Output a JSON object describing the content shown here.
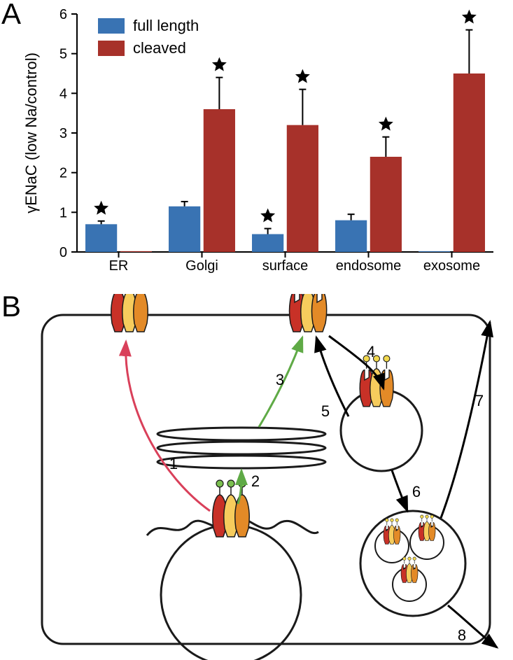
{
  "figure": {
    "panelA_label": "A",
    "panelB_label": "B",
    "panel_label_fontsize": 42
  },
  "chart": {
    "type": "bar",
    "ylabel": "γENaC  (low Na/control)",
    "ylabel_fontsize": 22,
    "ylim": [
      0,
      6
    ],
    "ytick_step": 1,
    "tick_fontsize": 20,
    "category_fontsize": 20,
    "categories": [
      "ER",
      "Golgi",
      "surface",
      "endosome",
      "exosome"
    ],
    "full_length": {
      "values": [
        0.7,
        1.15,
        0.45,
        0.8,
        0.02
      ],
      "errors": [
        0.08,
        0.12,
        0.14,
        0.15,
        0.0
      ],
      "signif": [
        true,
        false,
        true,
        false,
        false
      ]
    },
    "cleaved": {
      "values": [
        0.02,
        3.6,
        3.2,
        2.4,
        4.5
      ],
      "errors": [
        0.0,
        0.8,
        0.9,
        0.5,
        1.1
      ],
      "signif": [
        false,
        true,
        true,
        true,
        true
      ]
    },
    "colors": {
      "full_length": "#3973b3",
      "cleaved": "#a7312a",
      "axis": "#000000",
      "background": "#ffffff",
      "star": "#000000"
    },
    "bar_width": 0.4,
    "error_cap_width": 10,
    "legend": {
      "items": [
        {
          "label": "full length",
          "key": "full_length"
        },
        {
          "label": "cleaved",
          "key": "cleaved"
        }
      ],
      "fontsize": 22
    }
  },
  "diagram": {
    "colors": {
      "subunit_red": "#c83127",
      "subunit_yellow": "#f6cc5d",
      "subunit_orange": "#e38a27",
      "glycan_green": "#7abf4f",
      "glycan_yellow": "#f2d94e",
      "outline": "#1a1a1a",
      "arrow_red": "#d9405a",
      "arrow_green": "#5faa46",
      "arrow_black": "#000000"
    },
    "step_labels": [
      "1",
      "2",
      "3",
      "4",
      "5",
      "6",
      "7",
      "8"
    ],
    "step_fontsize": 22
  }
}
